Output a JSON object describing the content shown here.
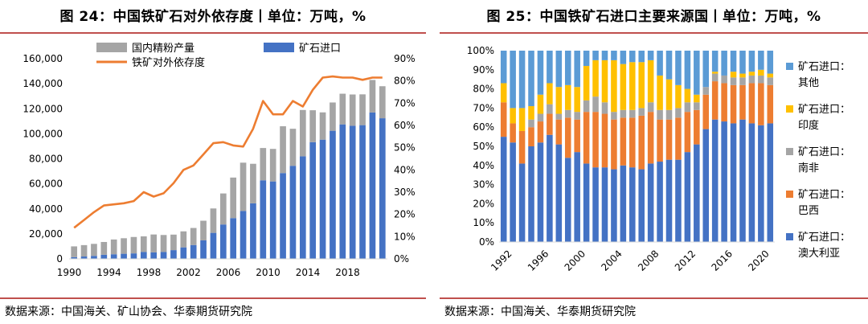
{
  "left": {
    "title": "图 24：中国铁矿石对外依存度丨单位：万吨，%",
    "source": "数据来源：中国海关、矿山协会、华泰期货研究院"
  },
  "right": {
    "title": "图 25：中国铁矿石进口主要来源国丨单位：万吨，%",
    "source": "数据来源：中国海关、华泰期货研究院"
  },
  "chart_data": [
    {
      "type": "bar",
      "title": "中国铁矿石对外依存度",
      "stacked": true,
      "x": [
        1990,
        1991,
        1992,
        1993,
        1994,
        1995,
        1996,
        1997,
        1998,
        1999,
        2000,
        2001,
        2002,
        2003,
        2004,
        2005,
        2006,
        2007,
        2008,
        2009,
        2010,
        2011,
        2012,
        2013,
        2014,
        2015,
        2016,
        2017,
        2018,
        2019,
        2020,
        2021
      ],
      "x_ticks": [
        "1990",
        "1994",
        "1998",
        "2002",
        "2006",
        "2010",
        "2014",
        "2018"
      ],
      "y_ticks": [
        "0",
        "20,000",
        "40,000",
        "60,000",
        "80,000",
        "100,000",
        "120,000",
        "140,000",
        "160,000"
      ],
      "y2_ticks": [
        "0%",
        "10%",
        "20%",
        "30%",
        "40%",
        "50%",
        "60%",
        "70%",
        "80%",
        "90%"
      ],
      "ylim": [
        0,
        160000
      ],
      "y2lim": [
        0,
        90
      ],
      "series": [
        {
          "name": "矿石进口",
          "axis": "left",
          "color": "#4472c4",
          "values": [
            1400,
            1900,
            2400,
            3300,
            3700,
            4100,
            4400,
            5500,
            5200,
            5500,
            7000,
            9200,
            11100,
            14800,
            20800,
            27500,
            32600,
            38300,
            44400,
            62800,
            61900,
            68600,
            74400,
            82000,
            93300,
            95300,
            102400,
            107500,
            106400,
            106900,
            117000,
            112400
          ]
        },
        {
          "name": "国内精粉产量",
          "axis": "left",
          "color": "#a5a5a5",
          "values": [
            8600,
            9100,
            9600,
            10200,
            11800,
            12400,
            13100,
            12500,
            14300,
            13600,
            12400,
            12800,
            13600,
            15700,
            19500,
            24800,
            32400,
            38600,
            31600,
            25800,
            26000,
            37400,
            29600,
            37000,
            25500,
            21800,
            22600,
            24500,
            25000,
            24600,
            26000,
            25600
          ]
        },
        {
          "name": "铁矿对外依存度",
          "axis": "right",
          "color": "#ed7d31",
          "type": "line",
          "values": [
            14,
            17.5,
            21,
            24,
            24.5,
            25,
            26,
            30,
            28,
            29.5,
            34,
            40,
            42,
            47,
            52,
            52.5,
            51,
            50.5,
            58.5,
            71,
            65,
            65,
            71,
            68.5,
            76,
            81.5,
            82,
            81.5,
            81.5,
            80.5,
            81.5,
            81.5
          ]
        }
      ],
      "legend": "top"
    },
    {
      "type": "bar",
      "title": "中国铁矿石进口主要来源国",
      "stacked": true,
      "percent": true,
      "x": [
        1992,
        1993,
        1994,
        1995,
        1996,
        1997,
        1998,
        1999,
        2000,
        2001,
        2002,
        2003,
        2004,
        2005,
        2006,
        2007,
        2008,
        2009,
        2010,
        2011,
        2012,
        2013,
        2014,
        2015,
        2016,
        2017,
        2018,
        2019,
        2020,
        2021
      ],
      "x_ticks": [
        "1992",
        "1996",
        "2000",
        "2004",
        "2008",
        "2012",
        "2016",
        "2020"
      ],
      "y_ticks": [
        "0%",
        "10%",
        "20%",
        "30%",
        "40%",
        "50%",
        "60%",
        "70%",
        "80%",
        "90%",
        "100%"
      ],
      "ylim": [
        0,
        100
      ],
      "series": [
        {
          "name": "矿石进口：澳大利亚",
          "color": "#4472c4",
          "values": [
            55,
            52,
            41,
            50,
            52,
            56,
            51,
            44,
            47,
            41,
            39,
            39,
            38,
            40,
            39,
            38,
            41,
            42,
            43,
            43,
            47,
            51,
            59,
            64,
            63,
            62,
            64,
            62,
            61,
            62
          ]
        },
        {
          "name": "矿石进口：巴西",
          "color": "#ed7d31",
          "values": [
            18,
            10,
            17,
            10,
            11,
            11,
            13,
            21,
            17,
            27,
            29,
            28,
            26,
            25,
            26,
            28,
            27,
            22,
            21,
            22,
            21,
            18,
            18,
            20,
            20,
            20,
            18,
            21,
            22,
            20
          ]
        },
        {
          "name": "矿石进口：南非",
          "color": "#a5a5a5",
          "values": [
            0,
            0,
            0,
            4,
            4,
            5,
            3,
            4,
            4,
            6,
            8,
            6,
            4,
            4,
            4,
            4,
            5,
            5,
            5,
            5,
            5,
            4,
            4,
            4,
            4,
            4,
            4,
            4,
            4,
            4
          ]
        },
        {
          "name": "矿石进口：印度",
          "color": "#ffc000",
          "values": [
            10,
            8,
            12,
            7,
            10,
            11,
            14,
            13,
            13,
            18,
            19,
            22,
            27,
            24,
            25,
            24,
            22,
            18,
            16,
            12,
            7,
            4,
            0,
            1,
            0,
            3,
            2,
            2,
            3,
            2
          ]
        },
        {
          "name": "矿石进口：其他",
          "color": "#5b9bd5",
          "values": [
            17,
            30,
            30,
            29,
            23,
            17,
            19,
            18,
            19,
            8,
            5,
            5,
            5,
            7,
            6,
            6,
            5,
            13,
            15,
            18,
            20,
            23,
            19,
            11,
            13,
            11,
            12,
            11,
            10,
            12
          ]
        }
      ],
      "legend": "right"
    }
  ]
}
